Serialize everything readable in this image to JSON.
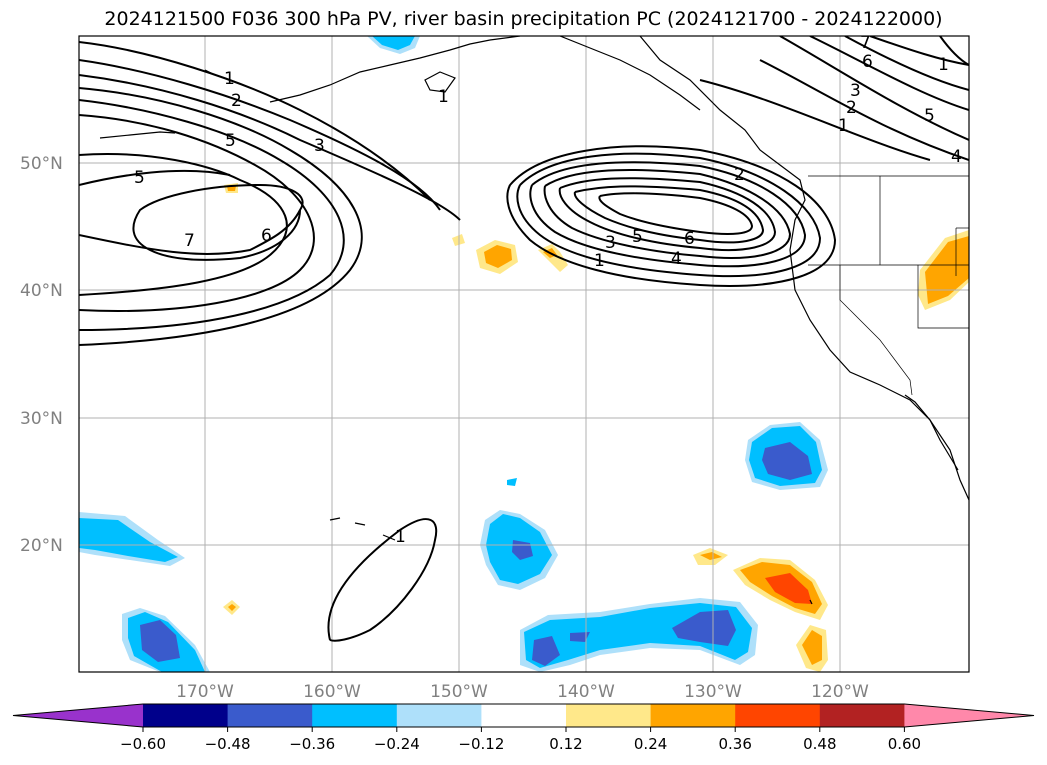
{
  "title": "2024121500 F036 300 hPa PV, river basin precipitation PC (2024121700 - 2024122000)",
  "lat_labels": [
    "50°N",
    "40°N",
    "30°N",
    "20°N"
  ],
  "lon_labels": [
    "170°W",
    "160°W",
    "150°W",
    "140°W",
    "130°W",
    "120°W"
  ],
  "contour_labels": [
    "1",
    "2",
    "5",
    "5",
    "3",
    "7",
    "6",
    "1",
    "2",
    "3",
    "5",
    "6",
    "4",
    "1",
    "1",
    "7",
    "6",
    "3",
    "2",
    "1",
    "5",
    "4",
    "1"
  ],
  "colorbar": {
    "ticks": [
      "−0.60",
      "−0.48",
      "−0.36",
      "−0.24",
      "−0.12",
      "0.12",
      "0.24",
      "0.36",
      "0.48",
      "0.60"
    ],
    "colors": [
      "#9932cc",
      "#00008b",
      "#3a5bcc",
      "#00bfff",
      "#aee0fa",
      "#ffffff",
      "#ffe88a",
      "#ffa500",
      "#ff4500",
      "#b22222",
      "#ff88aa"
    ]
  },
  "legend_colors": {
    "blue_dark": "#3a5bcc",
    "blue_mid": "#00bfff",
    "blue_light": "#aee0fa",
    "yellow": "#ffe88a",
    "orange": "#ffa500",
    "red_orange": "#ff4500"
  }
}
